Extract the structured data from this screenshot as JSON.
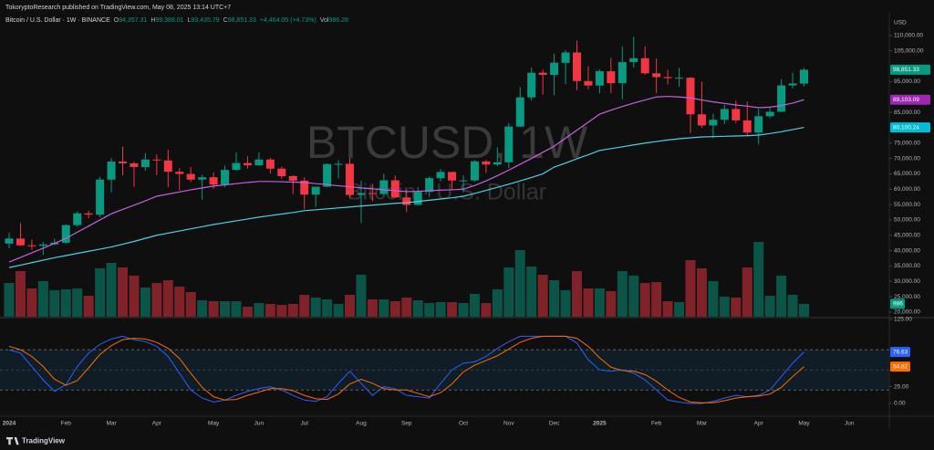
{
  "header": {
    "published": "TokoryptoResearch published on TradingView.com, May 08, 2025 13:14 UTC+7"
  },
  "footer": {
    "brand": "TradingView"
  },
  "chart_data": [
    {
      "type": "candlestick",
      "title": "Bitcoin / U.S. Dollar · 1W · BINANCE",
      "watermark": [
        "BTCUSD, 1W",
        "Bitcoin · U.S. Dollar"
      ],
      "currency": "USD",
      "legend": {
        "ohlc": [
          {
            "key": "O",
            "value": "94,357.31"
          },
          {
            "key": "H",
            "value": "99,388.01"
          },
          {
            "key": "L",
            "value": "93,435.79"
          },
          {
            "key": "C",
            "value": "98,851.33"
          }
        ],
        "change": "+4,464.05 (+4.73%)",
        "volume": {
          "key": "Vol",
          "value": "986.28"
        }
      },
      "categories": [
        "2024",
        null,
        null,
        null,
        null,
        "Feb",
        null,
        null,
        null,
        "Mar",
        null,
        null,
        null,
        "Apr",
        null,
        null,
        null,
        null,
        "May",
        null,
        null,
        null,
        "Jun",
        null,
        null,
        null,
        "Jul",
        null,
        null,
        null,
        null,
        "Aug",
        null,
        null,
        null,
        "Sep",
        null,
        null,
        null,
        null,
        "Oct",
        null,
        null,
        null,
        "Nov",
        null,
        null,
        null,
        "Dec",
        null,
        null,
        null,
        "2025",
        null,
        null,
        null,
        null,
        "Feb",
        null,
        null,
        null,
        "Mar",
        null,
        null,
        null,
        null,
        "Apr",
        null,
        null,
        null,
        "May",
        null,
        null,
        null,
        "Jun",
        null
      ],
      "open": [
        42283,
        43943,
        41732,
        41580,
        42031,
        42582,
        48300,
        52137,
        51730,
        63113,
        68955,
        68393,
        67210,
        69646,
        69360,
        65661,
        64941,
        63118,
        63892,
        61484,
        66274,
        68507,
        67766,
        69648,
        66676,
        64248,
        62772,
        58239,
        60797,
        68165,
        68249,
        58116,
        58712,
        58427,
        62880,
        57301,
        54869,
        59132,
        63578,
        65602,
        62819,
        62851,
        69031,
        68021,
        68741,
        80370,
        89855,
        97900,
        97185,
        101109,
        104463,
        95186,
        93716,
        98363,
        94488,
        101331,
        102620,
        97700,
        96462,
        96118,
        96258,
        84350,
        80734,
        82574,
        86082,
        82390,
        78430,
        83734,
        85179,
        93749,
        94357.31,
        null,
        null,
        null,
        null,
        null
      ],
      "high": [
        45879,
        48970,
        43578,
        42842,
        43882,
        48592,
        52816,
        52985,
        64000,
        70170,
        73777,
        68920,
        71769,
        71342,
        72797,
        66867,
        67233,
        64734,
        65494,
        67700,
        71979,
        70687,
        71997,
        70195,
        67298,
        64546,
        63861,
        60800,
        68366,
        69399,
        70079,
        62745,
        61800,
        65000,
        64480,
        59809,
        60670,
        64133,
        66498,
        65620,
        64478,
        69500,
        69519,
        73620,
        81500,
        93265,
        99588,
        98871,
        104088,
        105250,
        108353,
        99963,
        98976,
        102724,
        106422,
        109588,
        106457,
        102500,
        98826,
        99475,
        96500,
        95000,
        84539,
        87453,
        88765,
        88500,
        86100,
        86429,
        95758,
        97895,
        99388.01,
        null,
        null,
        null,
        null,
        null
      ],
      "low": [
        40750,
        41500,
        40280,
        38555,
        41804,
        42258,
        47700,
        50521,
        50901,
        59005,
        64533,
        60775,
        66000,
        64493,
        60660,
        59600,
        62391,
        56552,
        60187,
        60631,
        66060,
        66670,
        67612,
        65078,
        63379,
        58402,
        53485,
        54260,
        60632,
        63456,
        57122,
        49000,
        56078,
        57787,
        57201,
        52550,
        54591,
        57493,
        62538,
        59828,
        58946,
        62442,
        65260,
        67478,
        66835,
        80216,
        88831,
        90791,
        90500,
        94150,
        92175,
        92520,
        91220,
        91203,
        89256,
        99550,
        97200,
        91231,
        94088,
        93388,
        78258,
        80000,
        76606,
        81180,
        81565,
        77153,
        74508,
        83112,
        85145,
        92800,
        93435.79,
        null,
        null,
        null,
        null,
        null
      ],
      "close": [
        43943,
        41732,
        41580,
        42031,
        42582,
        48300,
        52137,
        51730,
        63113,
        68955,
        68393,
        67210,
        69646,
        69360,
        65661,
        64941,
        63118,
        63892,
        61484,
        66274,
        68507,
        67766,
        69648,
        66676,
        64248,
        62772,
        58239,
        60797,
        68165,
        68249,
        58116,
        58712,
        58427,
        62880,
        57301,
        54869,
        59132,
        63578,
        65602,
        62819,
        62851,
        69031,
        68021,
        68741,
        80370,
        89855,
        97900,
        97185,
        101109,
        104463,
        95186,
        93716,
        98363,
        94488,
        101331,
        102620,
        97700,
        96462,
        96118,
        96258,
        84350,
        80734,
        82574,
        86082,
        82390,
        78430,
        83734,
        85179,
        93749,
        94387,
        98851.33,
        null,
        null,
        null,
        null,
        null
      ],
      "close_label": "98,851.33",
      "up_color": "#089981",
      "down_color": "#f23645",
      "volume": {
        "values": [
          2590,
          3500,
          2170,
          2730,
          2030,
          2100,
          2170,
          1610,
          3710,
          4130,
          3780,
          3150,
          2240,
          2590,
          2800,
          2310,
          1890,
          1260,
          1190,
          1190,
          1190,
          770,
          1050,
          980,
          910,
          980,
          1680,
          1470,
          1330,
          980,
          1680,
          3220,
          1330,
          1330,
          1190,
          1470,
          1260,
          1050,
          1120,
          1120,
          1050,
          1750,
          1050,
          2100,
          3780,
          5110,
          3850,
          3220,
          2800,
          2030,
          3500,
          2170,
          2170,
          1960,
          3500,
          3150,
          2590,
          2660,
          1190,
          1120,
          4340,
          3710,
          2730,
          1540,
          1470,
          3780,
          5740,
          1610,
          3150,
          1680,
          986.28,
          null,
          null,
          null,
          null,
          null
        ],
        "last_label": "986"
      },
      "series": [
        {
          "name": "MA 20",
          "color": "#c561df",
          "tag_color": "#9c27b0",
          "last_label": "89,103.09",
          "values": [
            36300,
            37800,
            39300,
            40800,
            42400,
            44000,
            46000,
            48000,
            50000,
            52000,
            53400,
            54800,
            56200,
            57700,
            58400,
            59100,
            59800,
            60400,
            61000,
            61400,
            61800,
            62200,
            62500,
            62500,
            62400,
            62300,
            62200,
            61800,
            61500,
            61100,
            60800,
            60400,
            60100,
            59800,
            59500,
            59200,
            59300,
            59500,
            59700,
            59800,
            60000,
            61200,
            62700,
            64400,
            66200,
            68100,
            70000,
            72000,
            74000,
            76600,
            79200,
            81800,
            84400,
            85700,
            86900,
            88000,
            89000,
            90000,
            90200,
            90000,
            89700,
            89000,
            88400,
            87900,
            87400,
            87000,
            86500,
            86700,
            87200,
            88000,
            89103.09,
            null,
            null,
            null,
            null,
            null
          ]
        },
        {
          "name": "MA 50",
          "color": "#4dd0e1",
          "tag_color": "#00bcd4",
          "last_label": "80,100.24",
          "values": [
            34500,
            35300,
            36100,
            36900,
            37700,
            38400,
            39100,
            39800,
            40500,
            41200,
            42100,
            43000,
            44000,
            45000,
            45700,
            46400,
            47100,
            47800,
            48500,
            49100,
            49700,
            50300,
            50900,
            51400,
            51900,
            52400,
            53000,
            53300,
            53600,
            53900,
            54200,
            54500,
            54800,
            55100,
            55400,
            55600,
            56000,
            56400,
            56800,
            57200,
            57700,
            58600,
            59600,
            60600,
            61600,
            62700,
            63800,
            65000,
            67200,
            68500,
            69900,
            71200,
            72600,
            73200,
            73800,
            74400,
            75000,
            75500,
            76000,
            76400,
            76700,
            77000,
            77100,
            77200,
            77300,
            77400,
            77600,
            78100,
            78700,
            79400,
            80100.24,
            null,
            null,
            null,
            null,
            null
          ]
        }
      ],
      "ylim": [
        18500,
        116200
      ],
      "yticks": [
        {
          "value": 110000,
          "label": "110,000.00"
        },
        {
          "value": 105000,
          "label": "105,000.00"
        },
        {
          "value": 95000,
          "label": "95,000.00"
        },
        {
          "value": 85000,
          "label": "85,000.00"
        },
        {
          "value": 75000,
          "label": "75,000.00"
        },
        {
          "value": 70000,
          "label": "70,000.00"
        },
        {
          "value": 65000,
          "label": "65,000.00"
        },
        {
          "value": 60000,
          "label": "60,000.00"
        },
        {
          "value": 55000,
          "label": "55,000.00"
        },
        {
          "value": 50000,
          "label": "50,000.00"
        },
        {
          "value": 45000,
          "label": "45,000.00"
        },
        {
          "value": 40000,
          "label": "40,000.00"
        },
        {
          "value": 35000,
          "label": "35,000.00"
        },
        {
          "value": 30000,
          "label": "30,000.00"
        },
        {
          "value": 25000,
          "label": "25,000.00"
        },
        {
          "value": 20000,
          "label": "20,000.00"
        }
      ],
      "grid": false
    },
    {
      "type": "line",
      "series": [
        {
          "name": "K",
          "color": "#2962ff",
          "last_label": "76.63",
          "values": [
            80,
            75,
            55,
            35,
            18,
            28,
            55,
            75,
            88,
            96,
            100,
            95,
            92,
            85,
            70,
            45,
            20,
            8,
            2,
            5,
            12,
            18,
            22,
            25,
            20,
            12,
            5,
            3,
            10,
            30,
            48,
            30,
            12,
            25,
            22,
            12,
            10,
            8,
            30,
            50,
            60,
            62,
            70,
            82,
            92,
            100,
            100,
            100,
            100,
            100,
            90,
            65,
            50,
            48,
            50,
            45,
            35,
            20,
            5,
            2,
            0,
            0,
            3,
            8,
            12,
            10,
            12,
            20,
            40,
            60,
            76.63,
            null,
            null,
            null,
            null,
            null
          ]
        },
        {
          "name": "D",
          "color": "#ff6d00",
          "last_label": "54.82",
          "values": [
            85,
            80,
            70,
            55,
            36,
            27,
            34,
            53,
            73,
            86,
            95,
            97,
            96,
            91,
            82,
            67,
            45,
            24,
            10,
            5,
            6,
            12,
            17,
            22,
            22,
            19,
            12,
            7,
            6,
            14,
            29,
            36,
            30,
            22,
            20,
            20,
            15,
            10,
            16,
            29,
            47,
            57,
            64,
            71,
            81,
            91,
            97,
            100,
            100,
            100,
            97,
            85,
            68,
            54,
            49,
            48,
            43,
            33,
            20,
            9,
            2,
            1,
            1,
            4,
            8,
            10,
            11,
            14,
            24,
            40,
            54.82,
            null,
            null,
            null,
            null,
            null
          ]
        }
      ],
      "band": [
        20,
        80
      ],
      "midline": 50,
      "band_color": "#2196f3",
      "ylim": [
        -17.7,
        126.4
      ],
      "yticks": [
        {
          "value": 125,
          "label": "125.00"
        },
        {
          "value": 25,
          "label": "25.00"
        },
        {
          "value": 0,
          "label": "0.00"
        }
      ]
    }
  ]
}
